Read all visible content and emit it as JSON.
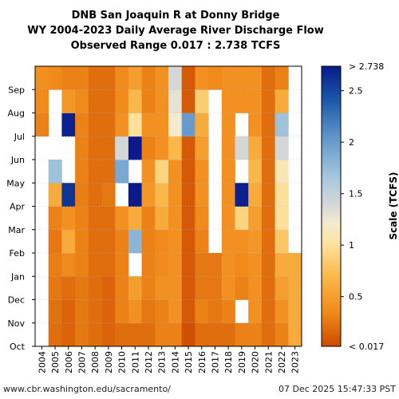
{
  "chart_data": {
    "type": "heatmap",
    "title_lines": [
      "DNB San Joaquin R at Donny Bridge",
      "WY 2004-2023 Daily Average River Discharge Flow",
      "Observed Range 0.017 : 2.738 TCFS"
    ],
    "x_categories": [
      "2004",
      "2005",
      "2006",
      "2007",
      "2008",
      "2009",
      "2010",
      "2011",
      "2012",
      "2013",
      "2014",
      "2015",
      "2016",
      "2017",
      "2018",
      "2019",
      "2020",
      "2021",
      "2022",
      "2023"
    ],
    "y_categories": [
      "Oct",
      "Nov",
      "Dec",
      "Jan",
      "Feb",
      "Mar",
      "Apr",
      "May",
      "Jun",
      "Jul",
      "Aug",
      "Sep"
    ],
    "colorbar": {
      "label": "Scale (TCFS)",
      "min": 0.017,
      "max": 2.738,
      "top_label": "> 2.738",
      "bottom_label": "< 0.017",
      "ticks": [
        0.5,
        1,
        1.5,
        2,
        2.5
      ],
      "tick_labels": [
        "0.5",
        "1",
        "1.5",
        "2",
        "2.5"
      ]
    },
    "grid": true,
    "monthly_values": [
      [
        null,
        null,
        null,
        null,
        null,
        null,
        null,
        null,
        null,
        0.3,
        0.35,
        0.38
      ],
      [
        0.2,
        0.22,
        0.25,
        0.28,
        0.25,
        0.3,
        0.6,
        1.7,
        null,
        null,
        null,
        0.35
      ],
      [
        0.15,
        0.15,
        0.2,
        0.35,
        0.6,
        0.4,
        2.6,
        null,
        null,
        2.7,
        0.45,
        0.3
      ],
      [
        0.25,
        0.25,
        0.25,
        0.3,
        0.3,
        0.3,
        0.28,
        0.3,
        0.3,
        0.3,
        0.35,
        0.3
      ],
      [
        0.2,
        0.2,
        0.2,
        0.2,
        0.2,
        0.2,
        0.2,
        0.2,
        0.2,
        0.2,
        0.2,
        0.2
      ],
      [
        0.15,
        0.15,
        0.15,
        0.2,
        0.2,
        0.2,
        0.25,
        0.2,
        0.2,
        0.2,
        0.2,
        0.2
      ],
      [
        0.2,
        0.3,
        0.3,
        0.3,
        0.3,
        0.4,
        null,
        1.9,
        1.4,
        0.4,
        0.35,
        0.35
      ],
      [
        0.2,
        0.4,
        0.5,
        null,
        1.8,
        0.6,
        2.8,
        null,
        2.8,
        1.0,
        0.7,
        0.5
      ],
      [
        0.2,
        0.25,
        0.3,
        0.3,
        0.3,
        0.3,
        0.45,
        0.4,
        0.3,
        0.4,
        0.3,
        0.3
      ],
      [
        0.3,
        0.3,
        0.4,
        0.35,
        0.35,
        0.6,
        0.7,
        0.9,
        0.4,
        0.4,
        0.4,
        0.4
      ],
      [
        0.3,
        0.4,
        0.4,
        0.4,
        0.4,
        0.4,
        0.4,
        0.4,
        0.7,
        1.2,
        1.3,
        1.4
      ],
      [
        0.05,
        0.1,
        0.1,
        0.1,
        0.1,
        0.1,
        0.1,
        0.1,
        0.1,
        2.0,
        0.1,
        0.1
      ],
      [
        0.2,
        0.3,
        0.25,
        0.25,
        0.3,
        0.35,
        0.4,
        0.4,
        0.5,
        0.6,
        0.85,
        0.4
      ],
      [
        0.2,
        0.25,
        0.25,
        0.25,
        null,
        null,
        null,
        null,
        null,
        null,
        null,
        0.35
      ],
      [
        0.2,
        0.3,
        0.4,
        0.4,
        0.4,
        0.4,
        0.4,
        0.4,
        0.4,
        0.4,
        0.4,
        0.4
      ],
      [
        0.3,
        null,
        0.3,
        0.35,
        0.4,
        0.9,
        2.7,
        null,
        1.4,
        null,
        0.4,
        0.4
      ],
      [
        0.3,
        0.4,
        0.4,
        0.4,
        0.45,
        0.5,
        0.6,
        0.7,
        0.6,
        0.4,
        0.4,
        0.4
      ],
      [
        0.2,
        0.2,
        0.2,
        0.2,
        0.2,
        0.2,
        0.2,
        0.2,
        0.2,
        0.2,
        0.2,
        0.2
      ],
      [
        0.3,
        0.4,
        0.5,
        0.6,
        0.8,
        1.0,
        1.0,
        1.1,
        1.4,
        1.7,
        0.6,
        0.3
      ],
      [
        0.6,
        0.6,
        0.6,
        0.6,
        null,
        null,
        null,
        null,
        null,
        null,
        null,
        null
      ]
    ]
  },
  "footer": {
    "source_url": "www.cbr.washington.edu/sacramento/",
    "timestamp": "07 Dec 2025 15:47:33 PST"
  }
}
